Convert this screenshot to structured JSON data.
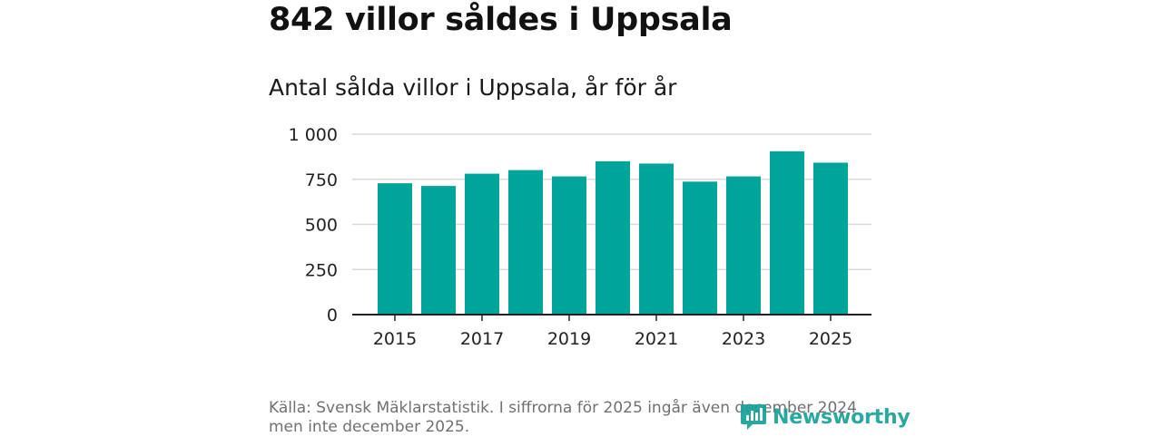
{
  "header": {
    "title": "842 villor såldes i Uppsala",
    "subtitle": "Antal sålda villor i Uppsala, år för år"
  },
  "footer": {
    "source_text": "Källa: Svensk Mäklarstatistik. I siffrorna för 2025 ingår även december 2024 men inte december 2025."
  },
  "brand": {
    "name": "Newsworthy",
    "icon": "newsworthy-logo-icon",
    "color": "#16a196"
  },
  "chart_data": {
    "type": "bar",
    "title": "Antal sålda villor i Uppsala, år för år",
    "xlabel": "",
    "ylabel": "",
    "categories": [
      "2015",
      "2016",
      "2017",
      "2018",
      "2019",
      "2020",
      "2021",
      "2022",
      "2023",
      "2024",
      "2025"
    ],
    "values": [
      728,
      713,
      781,
      801,
      766,
      850,
      837,
      737,
      766,
      905,
      842
    ],
    "ylim": [
      0,
      1000
    ],
    "yticks": [
      0,
      250,
      500,
      750,
      1000
    ],
    "ytick_labels": [
      "0",
      "250",
      "500",
      "750",
      "1 000"
    ],
    "xtick_labels": [
      "2015",
      "2017",
      "2019",
      "2021",
      "2023",
      "2025"
    ],
    "bar_color": "#00a49a",
    "grid": true,
    "legend": "none"
  }
}
